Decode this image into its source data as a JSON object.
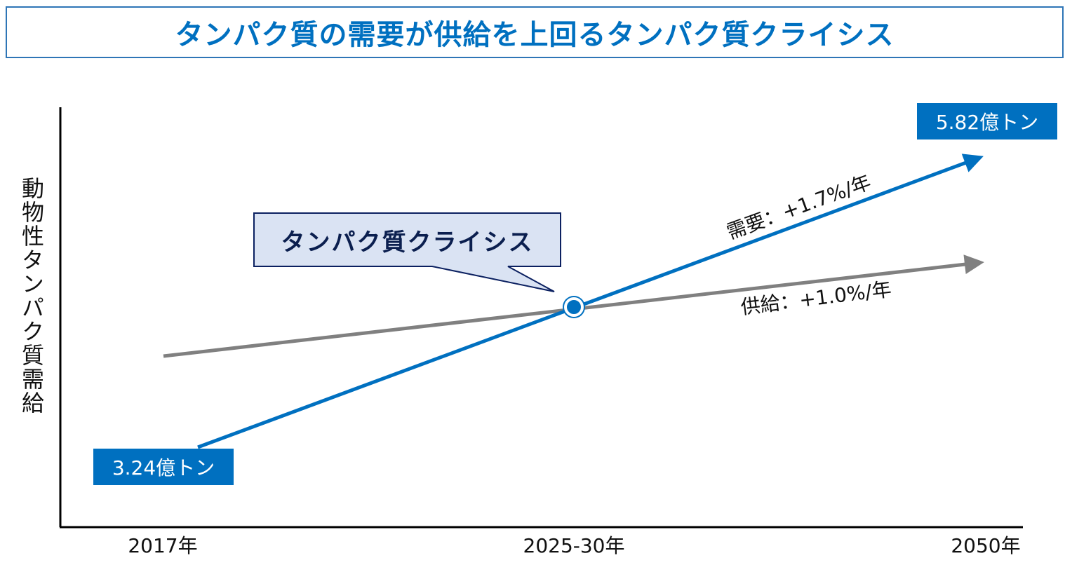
{
  "title": "タンパク質の需要が供給を上回るタンパク質クライシス",
  "y_axis_label": "動物性タンパク質需給",
  "x_ticks": [
    "2017年",
    "2025-30年",
    "2050年"
  ],
  "start_value_label": "3.24億トン",
  "end_value_label": "5.82億トン",
  "demand_label": "需要：+1.7%/年",
  "supply_label": "供給：+1.0%/年",
  "callout": "タンパク質クライシス",
  "colors": {
    "demand": "#0070c0",
    "supply": "#808080",
    "callout_fill": "#dae3f3",
    "callout_border": "#0b2060",
    "title": "#0070c0"
  }
}
